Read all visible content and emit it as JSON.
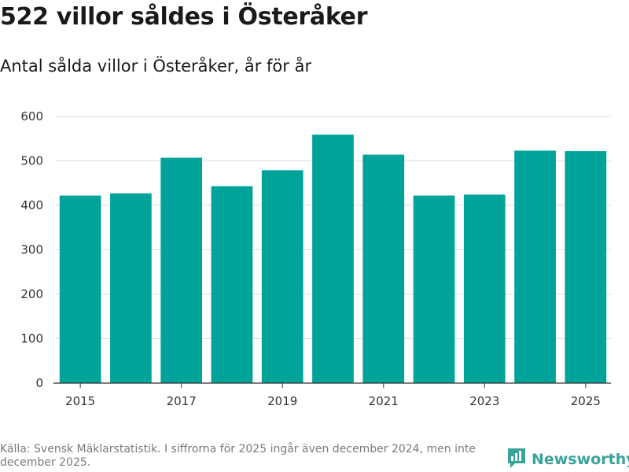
{
  "title": "522 villor såldes i Österåker",
  "subtitle": "Antal sålda villor i Österåker, år för år",
  "source_note": "Källa: Svensk Mäklarstatistik. I siffrorna för 2025 ingår även december 2024, men inte december 2025.",
  "brand": {
    "name": "Newsworthy",
    "icon": "newsworthy-logo-icon"
  },
  "colors": {
    "bar": "#00a39a",
    "grid": "#dddddd",
    "axis": "#333333",
    "brand": "#3aa39a"
  },
  "chart_data": {
    "type": "bar",
    "categories": [
      "2015",
      "2016",
      "2017",
      "2018",
      "2019",
      "2020",
      "2021",
      "2022",
      "2023",
      "2024",
      "2025"
    ],
    "values": [
      422,
      427,
      507,
      443,
      479,
      559,
      514,
      422,
      424,
      523,
      522
    ],
    "x_tick_labels": [
      "2015",
      "2017",
      "2019",
      "2021",
      "2023",
      "2025"
    ],
    "y_ticks": [
      0,
      100,
      200,
      300,
      400,
      500,
      600
    ],
    "ylim": [
      0,
      600
    ],
    "xlabel": "",
    "ylabel": "",
    "grid": true
  }
}
